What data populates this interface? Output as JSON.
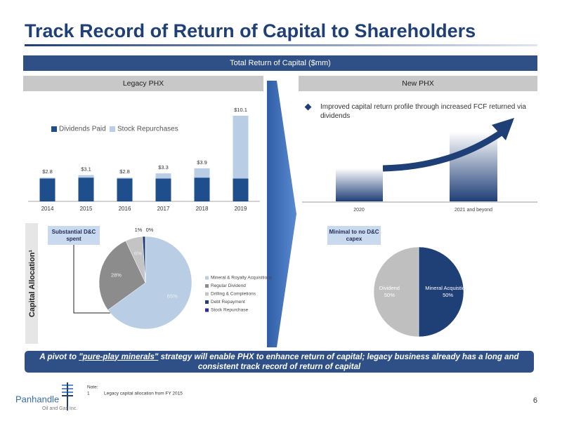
{
  "title": "Track Record of Return of Capital to Shareholders",
  "banner": "Total Return of Capital ($mm)",
  "sections": {
    "legacy": "Legacy PHX",
    "new": "New PHX",
    "allocation": "Capital Allocation¹"
  },
  "new_phx": {
    "bullet": "Improved capital return profile through increased FCF returned via dividends",
    "categories": [
      "2020",
      "2021 and beyond"
    ]
  },
  "callouts": [
    "Substantial D&C spent",
    "Minimal to no D&C capex"
  ],
  "statement": {
    "before": "A pivot to ",
    "emphasis": "\"pure-play minerals\"",
    "after": " strategy will enable PHX to enhance return of capital; legacy business already has a long and consistent track record of return of capital"
  },
  "note": {
    "label": "Note:",
    "number": "1",
    "text": "Legacy capital allocation from FY 2015"
  },
  "page_number": "6",
  "logo": {
    "name": "Panhandle",
    "subtitle": "Oil and Gas Inc."
  },
  "chart_data": [
    {
      "type": "bar",
      "stacked": true,
      "categories": [
        "2014",
        "2015",
        "2016",
        "2017",
        "2018",
        "2019"
      ],
      "series": [
        {
          "name": "Dividends Paid",
          "color": "#1f4e8c",
          "values": [
            2.7,
            2.8,
            2.7,
            2.7,
            2.8,
            2.7
          ]
        },
        {
          "name": "Stock Repurchases",
          "color": "#b9cde5",
          "values": [
            0.1,
            0.3,
            0.1,
            0.6,
            1.1,
            7.4
          ]
        }
      ],
      "totals": [
        2.8,
        3.1,
        2.8,
        3.3,
        3.9,
        10.1
      ],
      "total_labels": [
        "$2.8",
        "$3.1",
        "$2.8",
        "$3.3",
        "$3.9",
        "$10.1"
      ],
      "ylim": [
        0,
        11
      ],
      "legend": "top-left"
    },
    {
      "type": "pie",
      "categories": [
        "Mineral & Royalty Acquisitions",
        "Regular Dividend",
        "Drilling & Completions",
        "Debt Repayment",
        "Stock Repurchase"
      ],
      "values": [
        65,
        28,
        6,
        1,
        0
      ],
      "value_labels": [
        "65%",
        "28%",
        "6%",
        "1%",
        "0%"
      ],
      "colors": [
        "#b9cde5",
        "#8c8c8c",
        "#c4c4c4",
        "#1f3f77",
        "#2b2b9a"
      ],
      "legend": "right"
    },
    {
      "type": "pie",
      "categories": [
        "Mineral Acquistions",
        "Dividend"
      ],
      "values": [
        50,
        50
      ],
      "value_labels": [
        "50%",
        "50%"
      ],
      "colors": [
        "#1f3f77",
        "#bfbfbf"
      ],
      "legend": "none"
    }
  ]
}
